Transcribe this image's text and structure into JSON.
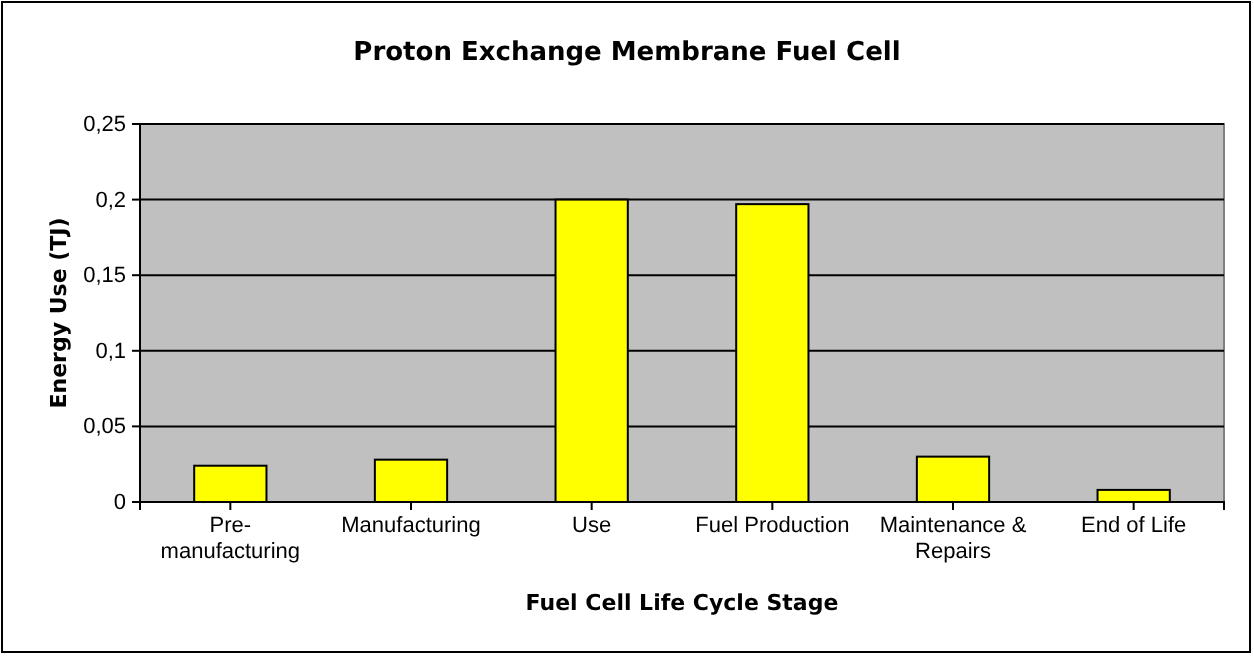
{
  "chart_data": {
    "type": "bar",
    "title": "Proton Exchange Membrane Fuel Cell",
    "xlabel": "Fuel Cell Life Cycle Stage",
    "ylabel": "Energy Use (TJ)",
    "categories": [
      "Pre-manufacturing",
      "Manufacturing",
      "Use",
      "Fuel Production",
      "Maintenance & Repairs",
      "End of Life"
    ],
    "values": [
      0.024,
      0.028,
      0.2,
      0.197,
      0.03,
      0.008
    ],
    "color": "#ffff00",
    "ylim": [
      0,
      0.25
    ],
    "yticks": [
      0,
      {
        "value": 0.05,
        "label": "0,05"
      },
      {
        "value": 0.1,
        "label": "0,1"
      },
      {
        "value": 0.15,
        "label": "0,15"
      },
      {
        "value": 0.2,
        "label": "0,2"
      },
      {
        "value": 0.25,
        "label": "0,25"
      }
    ],
    "grid": "y"
  }
}
